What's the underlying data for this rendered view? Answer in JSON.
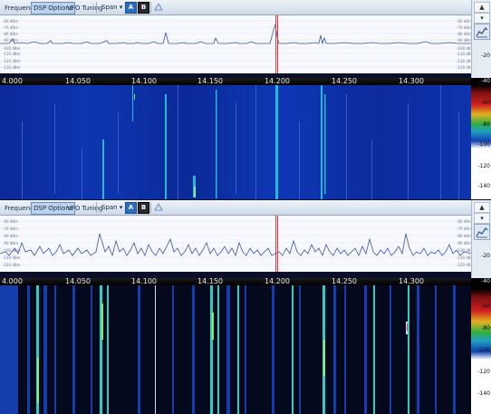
{
  "panels": [
    {
      "toolbar": {
        "tabs": [
          "Frequency",
          "DSP Options",
          "VFO Tuning"
        ],
        "active_tab": 1,
        "span_label": "Span",
        "span_caret": "▾",
        "button_a": "A",
        "button_b": "B",
        "share_icon": "triangle-icon"
      },
      "sidebar": {
        "up": "▲",
        "down": "▾",
        "chart_icon": "chart-icon"
      },
      "spectrum": {
        "db_left": [
          "-60 dBm",
          "-70 dBm",
          "-80 dBm",
          "-90 dBm",
          "-100 dBm",
          "-110 dBm",
          "-120 dBm",
          "-130 dBm"
        ],
        "db_right": [
          "-60 dBm",
          "-70 dBm",
          "-80 dBm",
          "-90 dBm",
          "-100 dBm",
          "-110 dBm",
          "-120 dBm",
          "-130 dBm"
        ],
        "scale": [
          "-20",
          "-40"
        ],
        "trace_color": "#3a4fb0",
        "marker_color": "#d04040"
      },
      "ruler": {
        "labels": [
          "4.000",
          "14.050",
          "14.100",
          "14.150",
          "14.200",
          "14.250",
          "14.300"
        ]
      },
      "waterfall": {
        "colorbar": [
          "-60",
          "-80",
          "-100",
          "-120",
          "-140"
        ],
        "style": "blue"
      }
    },
    {
      "toolbar": {
        "tabs": [
          "Frequency",
          "DSP Options",
          "VFO Tuning"
        ],
        "active_tab": 1,
        "span_label": "Span",
        "span_caret": "▾",
        "button_a": "A",
        "button_b": "B",
        "share_icon": "triangle-icon"
      },
      "sidebar": {
        "up": "▲",
        "down": "▾",
        "chart_icon": "chart-icon"
      },
      "spectrum": {
        "db_left": [
          "-60 dBm",
          "-70 dBm",
          "-80 dBm",
          "-90 dBm",
          "-100 dBm",
          "-110 dBm",
          "-120 dBm"
        ],
        "db_right": [
          "-60 dBm",
          "-70 dBm",
          "-80 dBm",
          "-90 dBm",
          "-100 dBm",
          "-110 dBm",
          "-120 dBm"
        ],
        "scale": [
          "-20",
          "-40"
        ],
        "trace_color": "#3a4fb0",
        "marker_color": "#d04040"
      },
      "ruler": {
        "labels": [
          "4.000",
          "14.050",
          "14.100",
          "14.150",
          "14.200",
          "14.250",
          "14.300"
        ]
      },
      "waterfall": {
        "colorbar": [
          "-60",
          "-80",
          "-100",
          "-120",
          "-140"
        ],
        "style": "dark"
      }
    }
  ]
}
